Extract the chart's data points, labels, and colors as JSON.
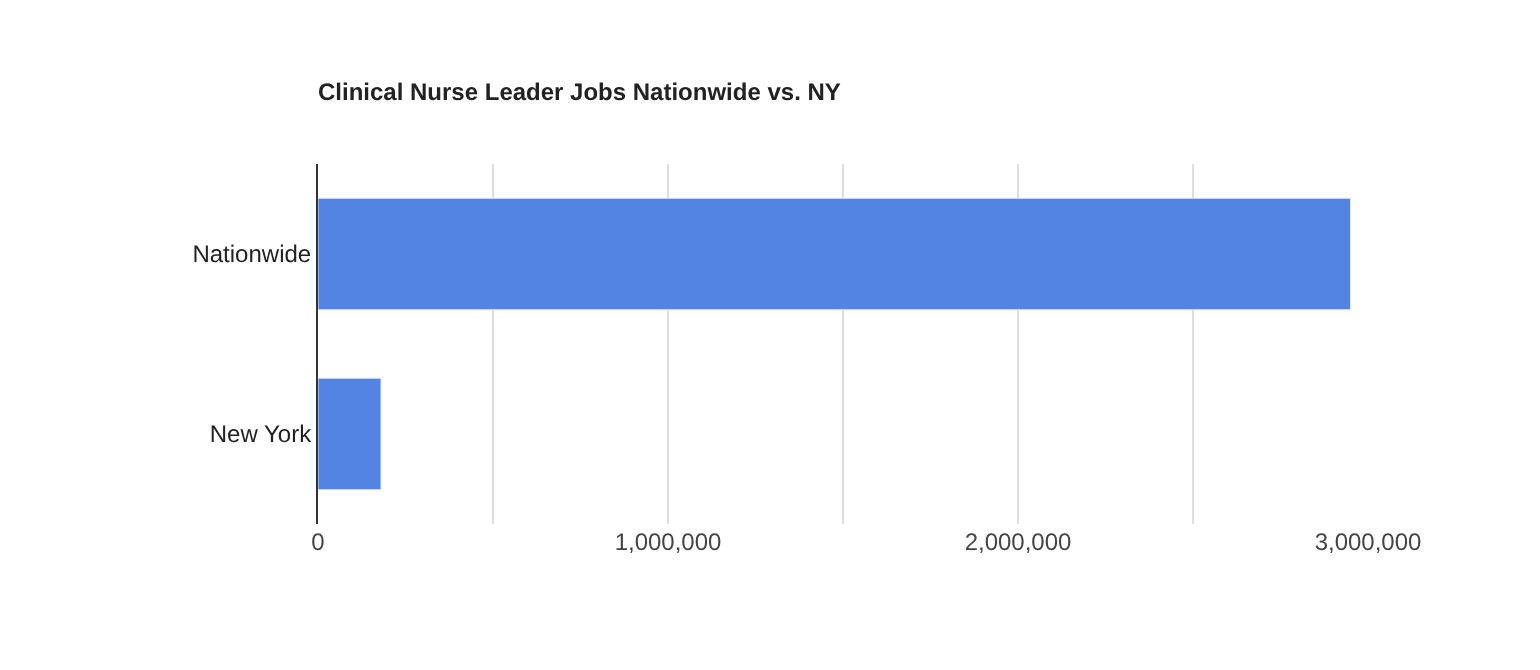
{
  "chart_data": {
    "type": "bar",
    "orientation": "horizontal",
    "title": "Clinical Nurse Leader Jobs Nationwide vs. NY",
    "categories": [
      "Nationwide",
      "New York"
    ],
    "series": [
      {
        "color": "#5384e3",
        "values": [
          2950000,
          180000
        ]
      }
    ],
    "xlim": [
      0,
      3000000
    ],
    "xticks": [
      0,
      {
        "value": 500000,
        "label": null
      },
      {
        "value": 1000000,
        "label": "1,000,000"
      },
      {
        "value": 1500000,
        "label": null
      },
      {
        "value": 2000000,
        "label": "2,000,000"
      },
      {
        "value": 2500000,
        "label": null
      },
      {
        "value": 3000000,
        "label": "3,000,000"
      }
    ],
    "grid": "x"
  }
}
